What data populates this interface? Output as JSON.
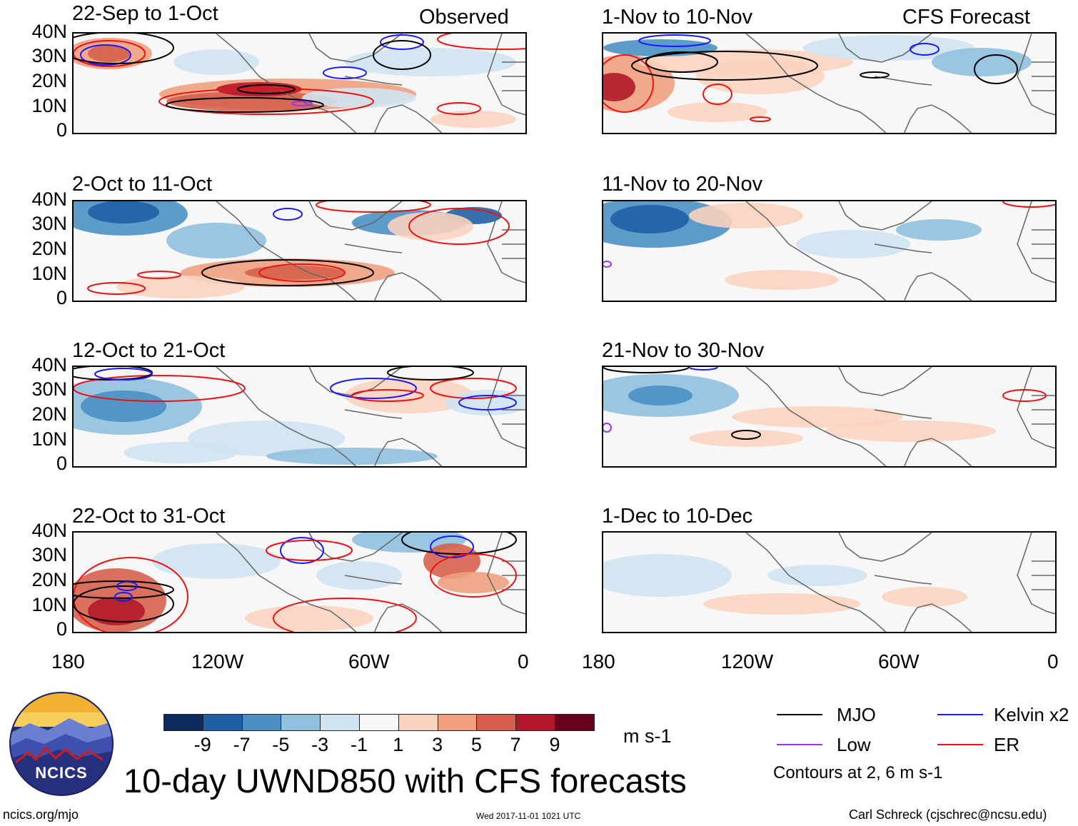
{
  "panels": {
    "left": [
      {
        "title": "22-Sep to 1-Oct",
        "tag": "Observed"
      },
      {
        "title": "2-Oct to 11-Oct"
      },
      {
        "title": "12-Oct to 21-Oct"
      },
      {
        "title": "22-Oct to 31-Oct"
      }
    ],
    "right": [
      {
        "title": "1-Nov to 10-Nov",
        "tag": "CFS Forecast"
      },
      {
        "title": "11-Nov to 20-Nov"
      },
      {
        "title": "21-Nov to 30-Nov"
      },
      {
        "title": "1-Dec to 10-Dec"
      }
    ]
  },
  "axes": {
    "y_ticks": [
      "40N",
      "30N",
      "20N",
      "10N",
      "0"
    ],
    "x_ticks": [
      "180",
      "120W",
      "60W",
      "0"
    ]
  },
  "colorbar": {
    "labels": [
      "-9",
      "-7",
      "-5",
      "-3",
      "-1",
      "1",
      "3",
      "5",
      "7",
      "9"
    ],
    "colors": [
      "#0d2b5e",
      "#1f5fa5",
      "#4a90c4",
      "#90c0de",
      "#cfe3f0",
      "#f7f7f7",
      "#fbd3bf",
      "#f0a07e",
      "#d6604d",
      "#b2182b",
      "#67001f"
    ],
    "unit": "m s-1"
  },
  "title": "10-day UWND850 with CFS forecasts",
  "logo": {
    "text": "NCICS"
  },
  "legend": {
    "items": [
      {
        "label": "MJO",
        "color": "#000000"
      },
      {
        "label": "Kelvin x2",
        "color": "#1a1aff"
      },
      {
        "label": "Low",
        "color": "#9b30ff"
      },
      {
        "label": "ER",
        "color": "#ee1111"
      }
    ],
    "note": "Contours at 2, 6 m s-1"
  },
  "footer": {
    "left": "ncics.org/mjo",
    "center": "Wed 2017-11-01 1021 UTC",
    "right": "Carl Schreck (cjschrec@ncsu.edu)"
  }
}
